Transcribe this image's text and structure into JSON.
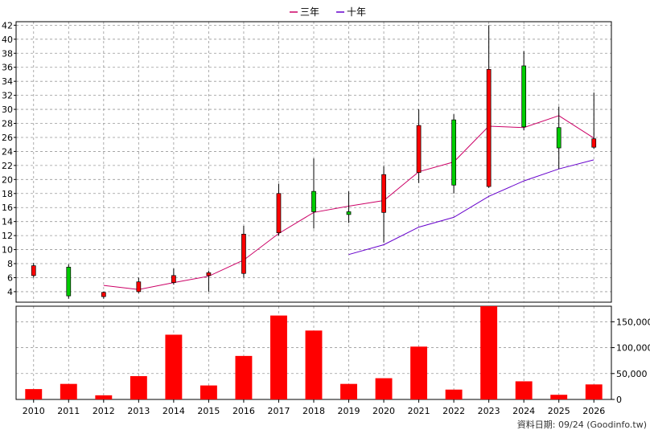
{
  "footer": {
    "credit": "資料日期: 09/24  (Goodinfo.tw)"
  },
  "colors": {
    "up": "#ff0000",
    "down": "#00cc00",
    "ma3": "#cc0066",
    "ma10": "#6600cc",
    "volume": "#ff0000",
    "grid": "#999999"
  },
  "chart_data": {
    "type": "candlestick",
    "categories": [
      "2010",
      "2011",
      "2012",
      "2013",
      "2014",
      "2015",
      "2016",
      "2017",
      "2018",
      "2019",
      "2020",
      "2021",
      "2022",
      "2023",
      "2024",
      "2025",
      "2026"
    ],
    "price_axis": {
      "ylim": [
        2.5,
        42.5
      ],
      "ticks": [
        4,
        6,
        8,
        10,
        12,
        14,
        16,
        18,
        20,
        22,
        24,
        26,
        28,
        30,
        32,
        34,
        36,
        38,
        40,
        42
      ]
    },
    "volume_axis": {
      "ylim": [
        0,
        180000
      ],
      "ticks": [
        0,
        50000,
        100000,
        150000
      ],
      "tick_labels": [
        "0",
        "50,000",
        "100,000",
        "150,000"
      ]
    },
    "candles": [
      {
        "open": 6.3,
        "close": 7.7,
        "high": 8.1,
        "low": 6.0,
        "dir": "up"
      },
      {
        "open": 7.5,
        "close": 3.4,
        "high": 7.9,
        "low": 3.0,
        "dir": "down"
      },
      {
        "open": 3.3,
        "close": 3.9,
        "high": 4.0,
        "low": 3.0,
        "dir": "up"
      },
      {
        "open": 4.0,
        "close": 5.4,
        "high": 6.0,
        "low": 3.8,
        "dir": "up"
      },
      {
        "open": 5.3,
        "close": 6.3,
        "high": 7.3,
        "low": 5.0,
        "dir": "up"
      },
      {
        "open": 6.3,
        "close": 6.7,
        "high": 7.0,
        "low": 4.0,
        "dir": "up"
      },
      {
        "open": 6.6,
        "close": 12.2,
        "high": 13.4,
        "low": 6.0,
        "dir": "up"
      },
      {
        "open": 12.4,
        "close": 18.0,
        "high": 19.4,
        "low": 12.0,
        "dir": "up"
      },
      {
        "open": 18.3,
        "close": 15.4,
        "high": 23.0,
        "low": 13.0,
        "dir": "down"
      },
      {
        "open": 15.4,
        "close": 15.0,
        "high": 18.3,
        "low": 13.8,
        "dir": "down"
      },
      {
        "open": 15.3,
        "close": 20.7,
        "high": 21.9,
        "low": 11.0,
        "dir": "up"
      },
      {
        "open": 21.0,
        "close": 27.7,
        "high": 30.0,
        "low": 19.5,
        "dir": "up"
      },
      {
        "open": 28.5,
        "close": 19.2,
        "high": 29.3,
        "low": 18.0,
        "dir": "down"
      },
      {
        "open": 19.0,
        "close": 35.7,
        "high": 42.0,
        "low": 18.8,
        "dir": "up"
      },
      {
        "open": 36.2,
        "close": 27.5,
        "high": 38.3,
        "low": 27.0,
        "dir": "down"
      },
      {
        "open": 27.4,
        "close": 24.5,
        "high": 30.4,
        "low": 21.5,
        "dir": "down"
      },
      {
        "open": 24.6,
        "close": 25.8,
        "high": 32.4,
        "low": 24.4,
        "dir": "up"
      }
    ],
    "ma_series": [
      {
        "name": "三年",
        "values": [
          null,
          null,
          4.9,
          4.3,
          5.3,
          6.2,
          8.5,
          12.3,
          15.3,
          16.2,
          17.0,
          21.1,
          22.5,
          27.6,
          27.4,
          29.1,
          25.9
        ]
      },
      {
        "name": "十年",
        "values": [
          null,
          null,
          null,
          null,
          null,
          null,
          null,
          null,
          null,
          9.3,
          10.7,
          13.2,
          14.6,
          17.6,
          19.8,
          21.5,
          22.8
        ]
      }
    ],
    "volume": [
      20000,
      30000,
      8000,
      45000,
      125000,
      27000,
      84000,
      162000,
      133000,
      30000,
      41000,
      102000,
      19000,
      180000,
      35000,
      9000,
      29000
    ]
  }
}
